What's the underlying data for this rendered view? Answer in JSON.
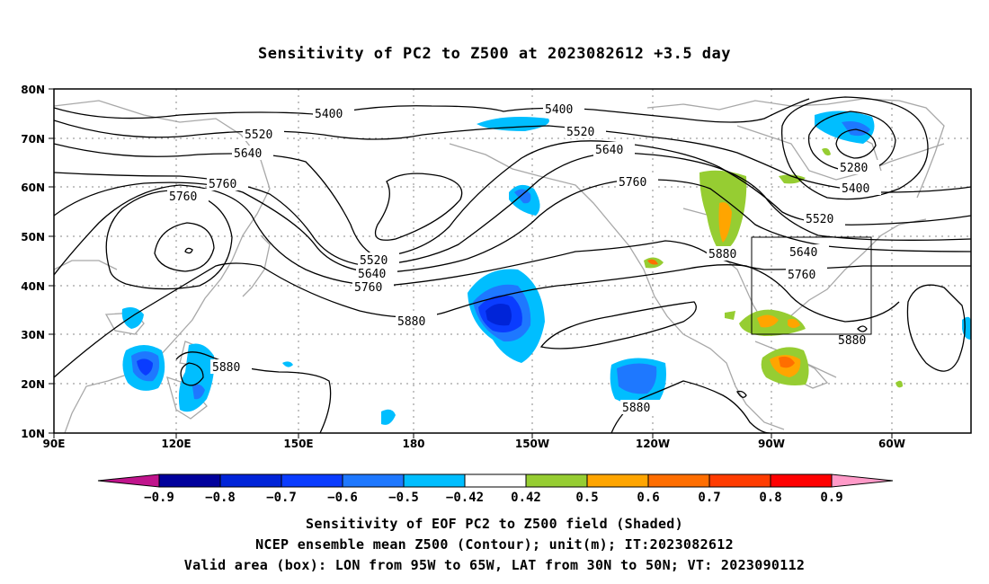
{
  "title": "Sensitivity of PC2 to Z500 at 2023082612 +3.5 day",
  "lon_labels": [
    "90E",
    "120E",
    "150E",
    "180",
    "150W",
    "120W",
    "90W",
    "60W"
  ],
  "lat_labels": [
    "80N",
    "70N",
    "60N",
    "50N",
    "40N",
    "30N",
    "20N",
    "10N"
  ],
  "colorbar": {
    "labels": [
      "−0.9",
      "−0.8",
      "−0.7",
      "−0.6",
      "−0.5",
      "−0.42",
      "0.42",
      "0.5",
      "0.6",
      "0.7",
      "0.8",
      "0.9"
    ],
    "colors": [
      "#c0148c",
      "#00009c",
      "#0024d8",
      "#0a3cff",
      "#1e78ff",
      "#00beff",
      "#ffffff",
      "#96cd32",
      "#ffa500",
      "#ff6e00",
      "#ff3c00",
      "#ff0000",
      "#ff9ac8"
    ]
  },
  "contour_labels": {
    "c5400_a": "5400",
    "c5400_b": "5400",
    "c5400_c": "5400",
    "c5520_a": "5520",
    "c5520_b": "5520",
    "c5520_c": "5520",
    "c5520_d": "5520",
    "c5640_a": "5640",
    "c5640_b": "5640",
    "c5640_c": "5640",
    "c5640_d": "5640",
    "c5760_a": "5760",
    "c5760_b": "5760",
    "c5760_c": "5760",
    "c5760_d": "5760",
    "c5760_e": "5760",
    "c5880_a": "5880",
    "c5880_b": "5880",
    "c5880_c": "5880",
    "c5880_d": "5880",
    "c5880_e": "5880",
    "c5280": "5280"
  },
  "captions": {
    "line1": "Sensitivity of EOF PC2 to Z500 field (Shaded)",
    "line2": "NCEP ensemble mean Z500 (Contour); unit(m); IT:2023082612",
    "line3": "Valid area (box): LON from 95W to 65W, LAT from 30N to 50N; VT: 2023090112"
  }
}
